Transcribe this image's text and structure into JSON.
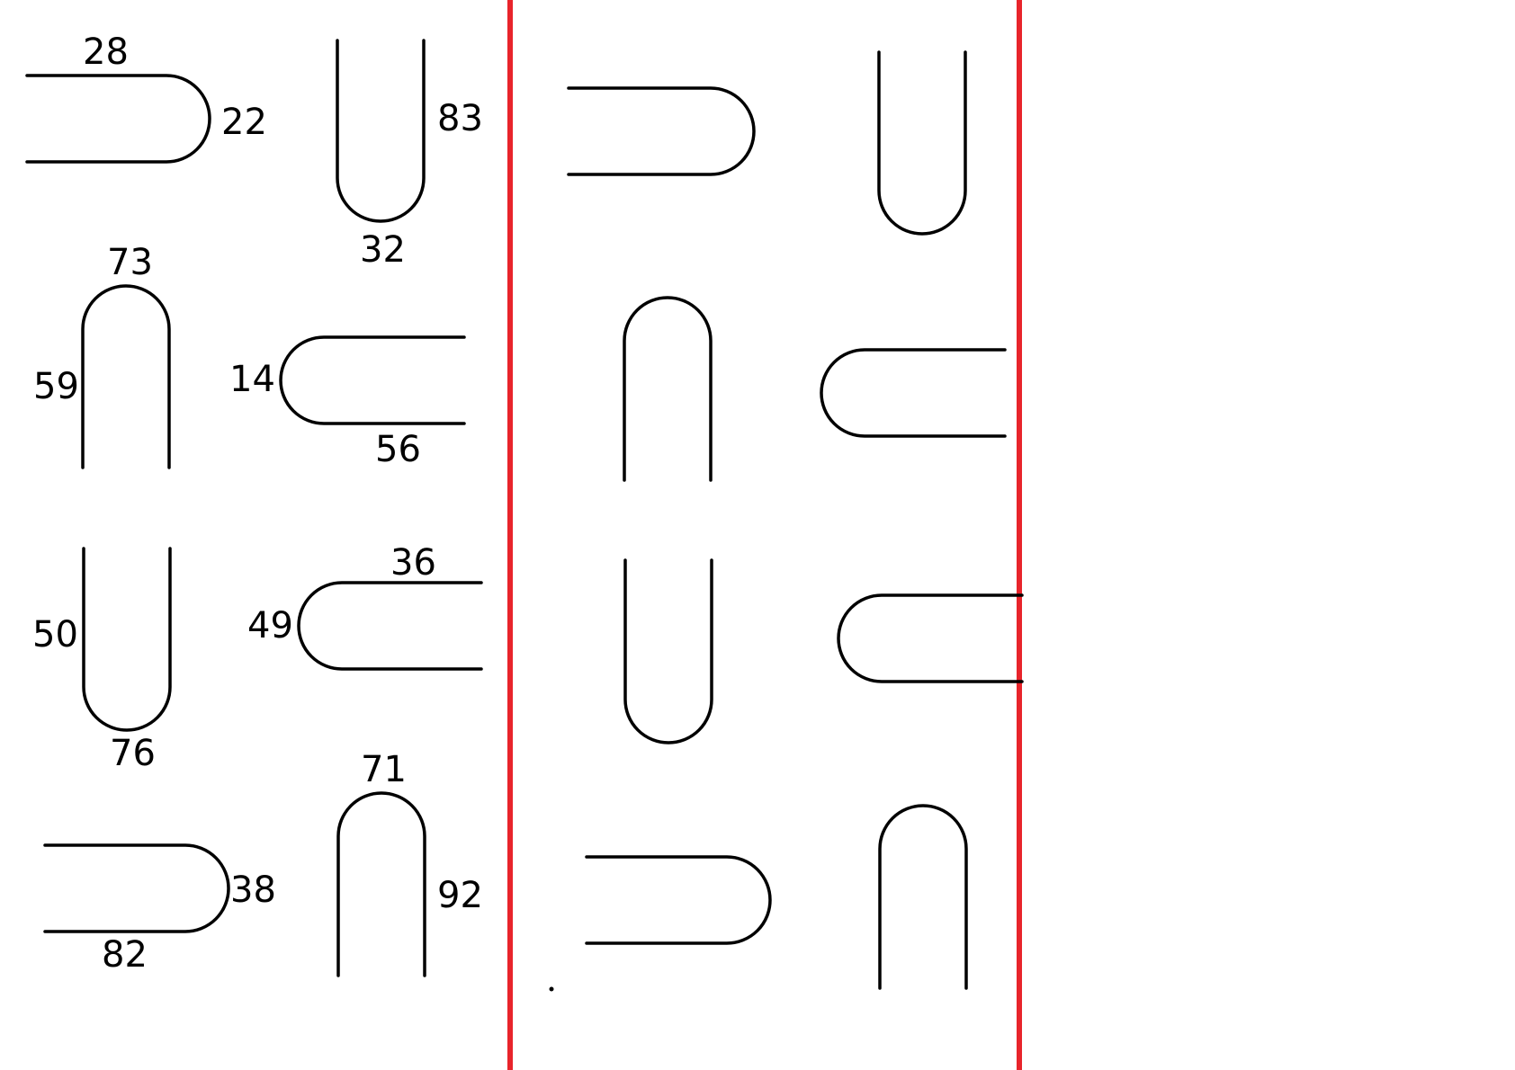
{
  "colors": {
    "stroke": "#000000",
    "divider": "#e8242b",
    "label": "#000000"
  },
  "labels": {
    "shape1": {
      "top": "28",
      "right": "22"
    },
    "shape2": {
      "right": "83",
      "bottom": "32"
    },
    "shape3": {
      "top": "73",
      "left": "59"
    },
    "shape4": {
      "left": "14",
      "bottom": "56"
    },
    "shape5": {
      "left": "50",
      "bottom": "76"
    },
    "shape6": {
      "top": "36",
      "left": "49"
    },
    "shape7": {
      "right": "38",
      "bottom": "82"
    },
    "shape8": {
      "top": "71",
      "right": "92"
    }
  }
}
